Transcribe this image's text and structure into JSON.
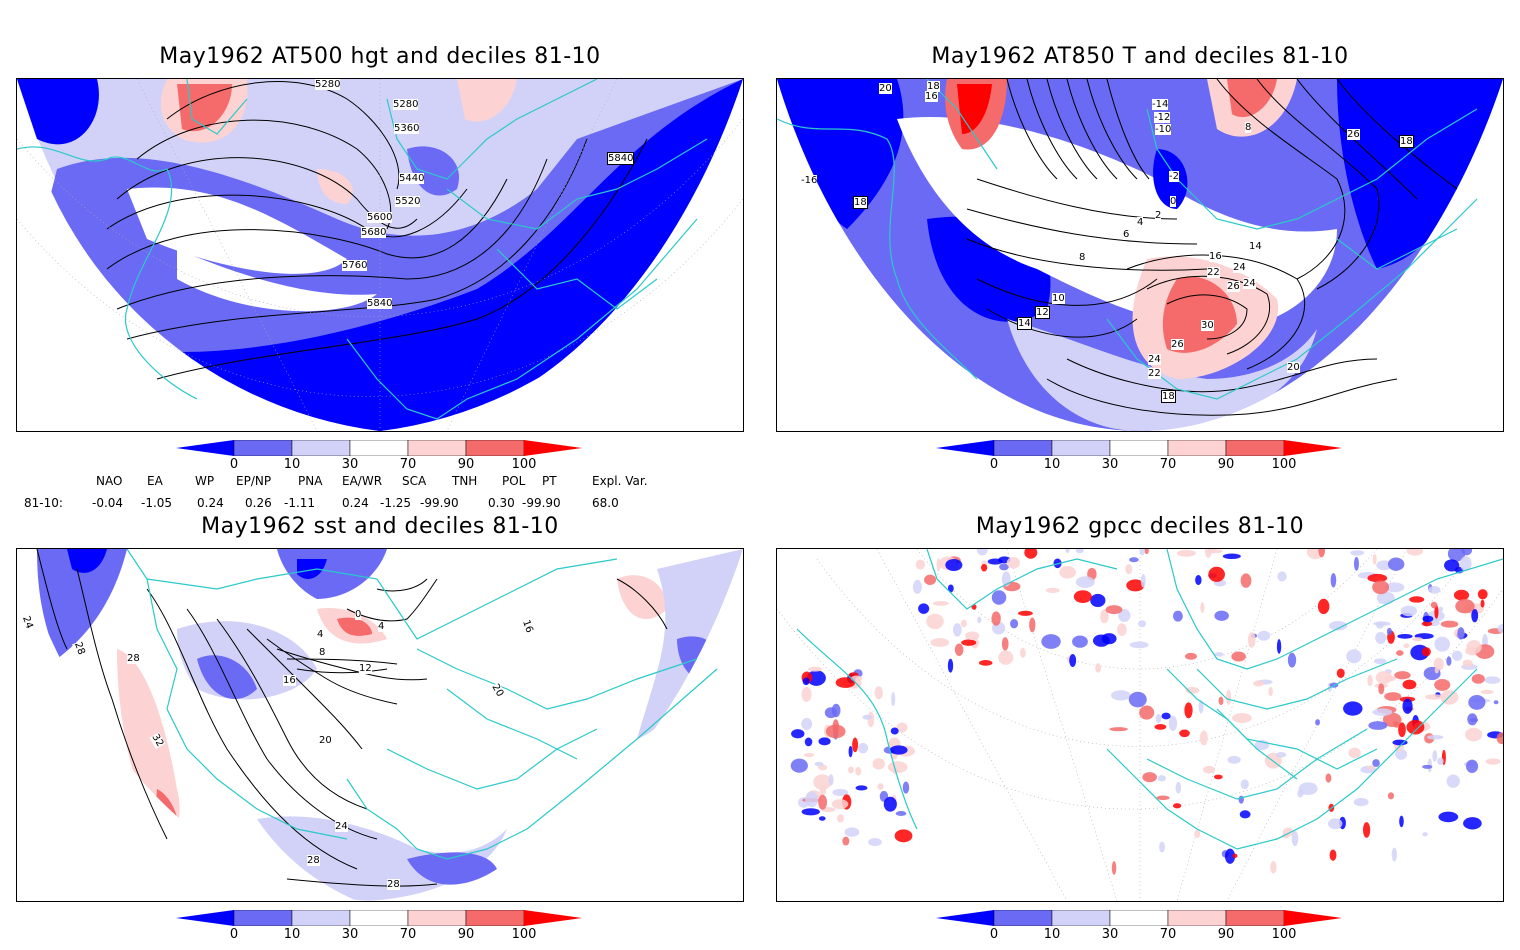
{
  "panels": [
    {
      "title": "May1962 AT500 hgt and deciles 81-10",
      "contour_labels": [
        "5280",
        "5280",
        "5360",
        "5440",
        "5520",
        "5600",
        "5680",
        "5760",
        "5840",
        "5840"
      ]
    },
    {
      "title": "May1962 AT850 T and deciles 81-10",
      "contour_labels": [
        "18",
        "16",
        "20",
        "-14",
        "-12",
        "-10",
        "8",
        "26",
        "18",
        "-16",
        "18",
        "-2",
        "0",
        "2",
        "4",
        "6",
        "8",
        "16",
        "14",
        "22",
        "24",
        "26",
        "24",
        "10",
        "12",
        "14",
        "30",
        "26",
        "24",
        "22",
        "18",
        "20"
      ]
    },
    {
      "title": "May1962 sst and deciles 81-10",
      "contour_labels": [
        "24",
        "28",
        "28",
        "32",
        "0",
        "4",
        "4",
        "8",
        "12",
        "16",
        "20",
        "24",
        "28",
        "28",
        "20",
        "16"
      ]
    },
    {
      "title": "May1962 gpcc deciles 81-10",
      "contour_labels": []
    }
  ],
  "colorbar": {
    "ticks": [
      "0",
      "10",
      "30",
      "70",
      "90",
      "100"
    ],
    "colors": [
      "#0000ff",
      "#6a6af5",
      "#d2d2f8",
      "#ffffff",
      "#fcd2d2",
      "#f56a6a",
      "#ff0000"
    ]
  },
  "indices": {
    "headers": [
      "NAO",
      "EA",
      "WP",
      "EP/NP",
      "PNA",
      "EA/WR",
      "SCA",
      "TNH",
      "POL",
      "PT",
      "Expl. Var."
    ],
    "row_label": "81-10:",
    "values": [
      "-0.04",
      "-1.05",
      "0.24",
      "0.26",
      "-1.11",
      "0.24",
      "-1.25",
      "-99.90",
      "0.30",
      "-99.90",
      "68.0"
    ]
  }
}
